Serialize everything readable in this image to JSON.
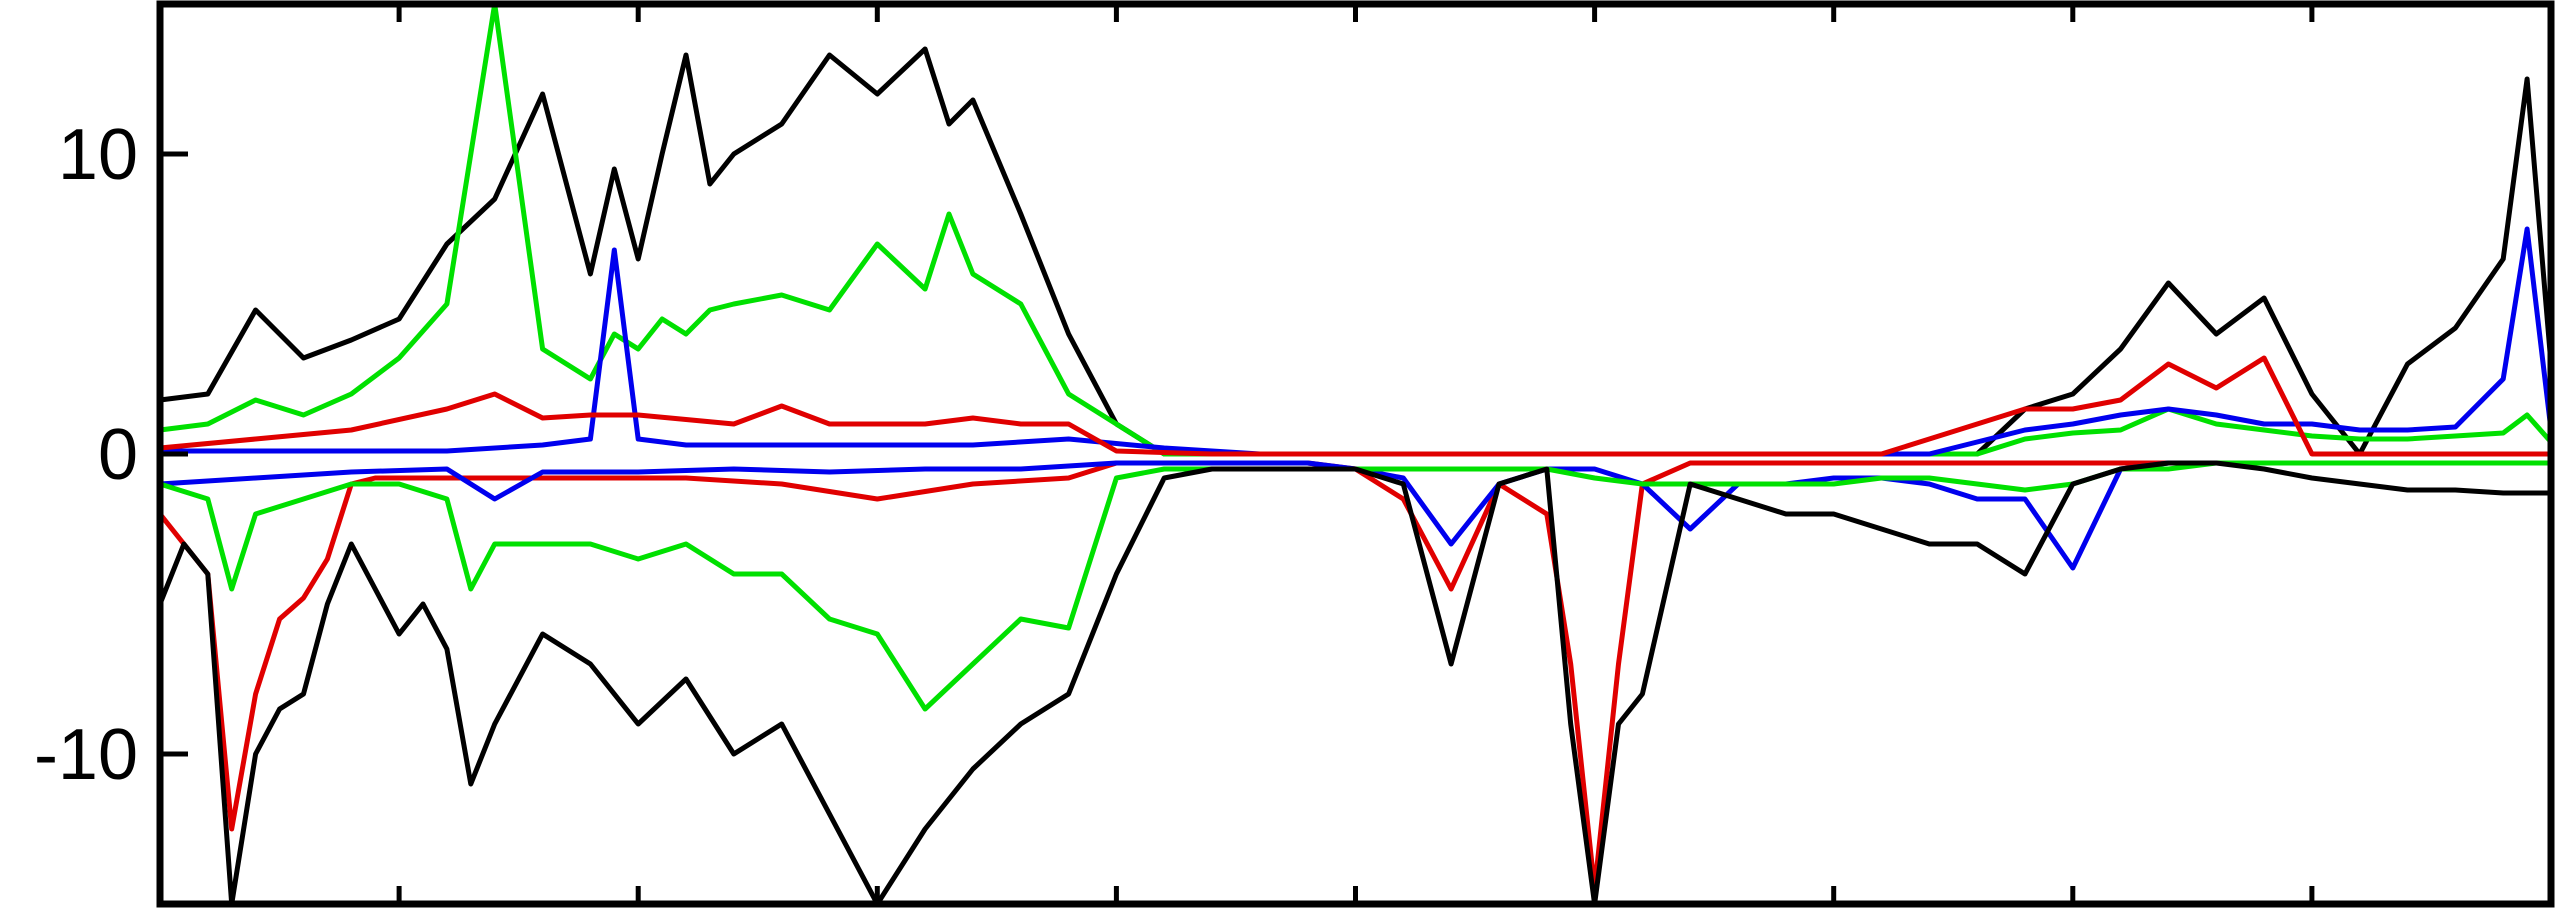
{
  "chart_data": {
    "type": "line",
    "title": "",
    "xlabel": "",
    "ylabel": "",
    "xlim": [
      0,
      100
    ],
    "ylim": [
      -15,
      15
    ],
    "yticks": [
      -10,
      0,
      10
    ],
    "ytick_labels": [
      "-10",
      "0",
      "10"
    ],
    "xticks": [
      10,
      20,
      30,
      40,
      50,
      60,
      70,
      80,
      90
    ],
    "grid": false,
    "legend": "none",
    "series": [
      {
        "color": "#000000",
        "x": [
          0,
          2,
          4,
          6,
          8,
          10,
          12,
          14,
          16,
          18,
          19,
          20,
          21,
          22,
          23,
          24,
          26,
          28,
          30,
          32,
          33,
          34,
          36,
          38,
          40,
          42,
          44,
          46,
          48,
          50,
          51,
          52,
          54,
          56,
          57,
          58,
          60,
          62,
          64,
          66,
          68,
          70,
          72,
          74,
          76,
          78,
          80,
          82,
          84,
          86,
          88,
          90,
          92,
          94,
          96,
          98,
          99,
          100
        ],
        "y": [
          1.8,
          2,
          4.8,
          3.2,
          3.8,
          4.5,
          7,
          8.5,
          12,
          6,
          9.5,
          6.5,
          10,
          13.3,
          9,
          10,
          11,
          13.3,
          12,
          13.5,
          11,
          11.8,
          8,
          4,
          1,
          0,
          0,
          0,
          0,
          0,
          0,
          0,
          0,
          0,
          0,
          0,
          0,
          0,
          0,
          0,
          0,
          0,
          0,
          0,
          0,
          1.5,
          2,
          3.5,
          5.7,
          4,
          5.2,
          2,
          0,
          3,
          4.2,
          6.5,
          12.5,
          3
        ]
      },
      {
        "color": "#00e000",
        "x": [
          0,
          2,
          4,
          6,
          8,
          10,
          12,
          14,
          16,
          18,
          19,
          20,
          21,
          22,
          23,
          24,
          26,
          28,
          30,
          32,
          33,
          34,
          36,
          38,
          40,
          42,
          44,
          46,
          48,
          50,
          51,
          52,
          54,
          56,
          57,
          58,
          60,
          62,
          64,
          66,
          68,
          70,
          72,
          74,
          76,
          78,
          80,
          82,
          84,
          86,
          88,
          90,
          92,
          94,
          96,
          98,
          99,
          100
        ],
        "y": [
          0.8,
          1,
          1.8,
          1.3,
          2,
          3.2,
          5,
          15,
          3.5,
          2.5,
          4,
          3.5,
          4.5,
          4,
          4.8,
          5,
          5.3,
          4.8,
          7,
          5.5,
          8,
          6,
          5,
          2,
          1,
          0,
          0,
          0,
          0,
          0,
          0,
          0,
          0,
          0,
          0,
          0,
          0,
          0,
          0,
          0,
          0,
          0,
          0,
          0,
          0,
          0.5,
          0.7,
          0.8,
          1.5,
          1,
          0.8,
          0.6,
          0.5,
          0.5,
          0.6,
          0.7,
          1.3,
          0.4
        ]
      },
      {
        "color": "#0000ee",
        "x": [
          0,
          4,
          8,
          12,
          16,
          18,
          19,
          20,
          22,
          26,
          30,
          34,
          38,
          42,
          46,
          50,
          54,
          58,
          62,
          66,
          70,
          74,
          78,
          80,
          82,
          84,
          86,
          88,
          90,
          92,
          94,
          96,
          98,
          99,
          100
        ],
        "y": [
          0.1,
          0.1,
          0.1,
          0.1,
          0.3,
          0.5,
          6.8,
          0.5,
          0.3,
          0.3,
          0.3,
          0.3,
          0.5,
          0.2,
          0,
          0,
          0,
          0,
          0,
          0,
          0,
          0,
          0.8,
          1,
          1.3,
          1.5,
          1.3,
          1,
          1,
          0.8,
          0.8,
          0.9,
          2.5,
          7.5,
          0.8
        ]
      },
      {
        "color": "#e00000",
        "x": [
          0,
          4,
          8,
          12,
          14,
          16,
          18,
          20,
          24,
          26,
          28,
          30,
          32,
          34,
          36,
          38,
          40,
          44,
          50,
          56,
          60,
          62,
          64,
          66,
          68,
          70,
          72,
          74,
          76,
          78,
          80,
          82,
          84,
          86,
          88,
          90,
          92,
          96,
          100
        ],
        "y": [
          0.2,
          0.5,
          0.8,
          1.5,
          2,
          1.2,
          1.3,
          1.3,
          1,
          1.6,
          1,
          1,
          1,
          1.2,
          1,
          1,
          0.1,
          0,
          0,
          0,
          0,
          0,
          0,
          0,
          0,
          0,
          0,
          0.5,
          1,
          1.5,
          1.5,
          1.8,
          3,
          2.2,
          3.2,
          0,
          0,
          0,
          0
        ]
      },
      {
        "color": "#e00000",
        "x": [
          0,
          2,
          3,
          4,
          5,
          6,
          7,
          8,
          9,
          10,
          14,
          18,
          22,
          26,
          30,
          34,
          38,
          40,
          44,
          48,
          50,
          52,
          54,
          56,
          58,
          59,
          60,
          61,
          62,
          64,
          66,
          68,
          70,
          72,
          76,
          80,
          84,
          88,
          92,
          96,
          100
        ],
        "y": [
          -2,
          -4,
          -12.5,
          -8,
          -5.5,
          -4.8,
          -3.5,
          -1,
          -0.8,
          -0.8,
          -0.8,
          -0.8,
          -0.8,
          -1,
          -1.5,
          -1,
          -0.8,
          -0.3,
          -0.3,
          -0.3,
          -0.5,
          -1.5,
          -4.5,
          -1,
          -2,
          -7,
          -14.5,
          -7,
          -1,
          -0.3,
          -0.3,
          -0.3,
          -0.3,
          -0.3,
          -0.3,
          -0.3,
          -0.3,
          -0.3,
          -0.3,
          -0.3,
          -0.3
        ]
      },
      {
        "color": "#0000ee",
        "x": [
          0,
          4,
          8,
          12,
          14,
          16,
          20,
          24,
          28,
          32,
          36,
          40,
          44,
          48,
          50,
          52,
          54,
          56,
          58,
          60,
          62,
          64,
          66,
          68,
          70,
          72,
          74,
          76,
          78,
          80,
          82,
          84,
          86,
          88,
          90,
          92,
          94,
          96,
          98,
          100
        ],
        "y": [
          -1,
          -0.8,
          -0.6,
          -0.5,
          -1.5,
          -0.6,
          -0.6,
          -0.5,
          -0.6,
          -0.5,
          -0.5,
          -0.3,
          -0.3,
          -0.3,
          -0.5,
          -0.8,
          -3,
          -1,
          -0.5,
          -0.5,
          -1,
          -2.5,
          -1,
          -1,
          -0.8,
          -0.8,
          -1,
          -1.5,
          -1.5,
          -3.8,
          -0.5,
          -0.3,
          -0.3,
          -0.3,
          -0.3,
          -0.3,
          -0.3,
          -0.3,
          -0.3,
          -0.3
        ]
      },
      {
        "color": "#00e000",
        "x": [
          0,
          2,
          3,
          4,
          6,
          8,
          10,
          12,
          13,
          14,
          16,
          18,
          20,
          22,
          24,
          26,
          28,
          30,
          32,
          34,
          36,
          38,
          40,
          42,
          44,
          46,
          48,
          50,
          52,
          54,
          56,
          58,
          60,
          62,
          64,
          66,
          68,
          70,
          72,
          74,
          76,
          78,
          80,
          82,
          84,
          86,
          88,
          90,
          92,
          94,
          96,
          98,
          100
        ],
        "y": [
          -1,
          -1.5,
          -4.5,
          -2,
          -1.5,
          -1,
          -1,
          -1.5,
          -4.5,
          -3,
          -3,
          -3,
          -3.5,
          -3,
          -4,
          -4,
          -5.5,
          -6,
          -8.5,
          -7,
          -5.5,
          -5.8,
          -0.8,
          -0.5,
          -0.5,
          -0.5,
          -0.5,
          -0.5,
          -0.5,
          -0.5,
          -0.5,
          -0.5,
          -0.8,
          -1,
          -1,
          -1,
          -1,
          -1,
          -0.8,
          -0.8,
          -1,
          -1.2,
          -1,
          -0.5,
          -0.5,
          -0.3,
          -0.3,
          -0.3,
          -0.3,
          -0.3,
          -0.3,
          -0.3,
          -0.3
        ]
      },
      {
        "color": "#000000",
        "x": [
          0,
          1,
          2,
          3,
          4,
          5,
          6,
          7,
          8,
          9,
          10,
          11,
          12,
          13,
          14,
          16,
          18,
          20,
          22,
          24,
          26,
          28,
          30,
          32,
          34,
          36,
          38,
          40,
          42,
          44,
          46,
          48,
          50,
          52,
          53,
          54,
          56,
          58,
          59,
          60,
          61,
          62,
          64,
          66,
          68,
          70,
          72,
          74,
          76,
          78,
          80,
          82,
          84,
          86,
          88,
          90,
          92,
          94,
          96,
          98,
          100
        ],
        "y": [
          -5,
          -3,
          -4,
          -15,
          -10,
          -8.5,
          -8,
          -5,
          -3,
          -4.5,
          -6,
          -5,
          -6.5,
          -11,
          -9,
          -6,
          -7,
          -9,
          -7.5,
          -10,
          -9,
          -12,
          -15,
          -12.5,
          -10.5,
          -9,
          -8,
          -4,
          -0.8,
          -0.5,
          -0.5,
          -0.5,
          -0.5,
          -1,
          -4,
          -7,
          -1,
          -0.5,
          -9,
          -15,
          -9,
          -8,
          -1,
          -1.5,
          -2,
          -2,
          -2.5,
          -3,
          -3,
          -4,
          -1,
          -0.5,
          -0.3,
          -0.3,
          -0.5,
          -0.8,
          -1,
          -1.2,
          -1.2,
          -1.3,
          -1.3
        ]
      }
    ]
  }
}
